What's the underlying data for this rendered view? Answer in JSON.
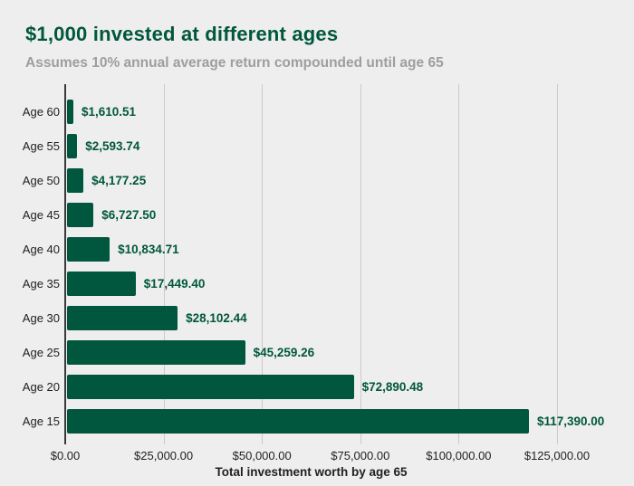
{
  "page": {
    "background_color": "#eeeeee",
    "accent_green": "#00573d",
    "subtitle_gray": "#9e9e9e",
    "gridline_color": "#cbcbcb",
    "axis_line_color": "#3a3a3a"
  },
  "header": {
    "title": "$1,000 invested at different ages",
    "subtitle": "Assumes 10% annual average return compounded until age 65"
  },
  "chart_data": {
    "type": "bar",
    "orientation": "horizontal",
    "title": "$1,000 invested at different ages",
    "subtitle": "Assumes 10% annual average return compounded until age 65",
    "xlabel": "Total investment worth by age 65",
    "ylabel": "",
    "categories": [
      "Age 60",
      "Age 55",
      "Age 50",
      "Age 45",
      "Age 40",
      "Age 35",
      "Age 30",
      "Age 25",
      "Age 20",
      "Age 15"
    ],
    "values": [
      1610.51,
      2593.74,
      4177.25,
      6727.5,
      10834.71,
      17449.4,
      28102.44,
      45259.26,
      72890.48,
      117390.0
    ],
    "value_labels": [
      "$1,610.51",
      "$2,593.74",
      "$4,177.25",
      "$6,727.50",
      "$10,834.71",
      "$17,449.40",
      "$28,102.44",
      "$45,259.26",
      "$72,890.48",
      "$117,390.00"
    ],
    "xlim": [
      0,
      125000
    ],
    "x_tick_values": [
      0,
      25000,
      50000,
      75000,
      100000,
      125000
    ],
    "x_tick_labels": [
      "$0.00",
      "$25,000.00",
      "$50,000.00",
      "$75,000.00",
      "$100,000.00",
      "$125,000.00"
    ],
    "grid": true,
    "legend": "none",
    "bar_color": "#00573d",
    "data_label_color": "#00573d"
  }
}
